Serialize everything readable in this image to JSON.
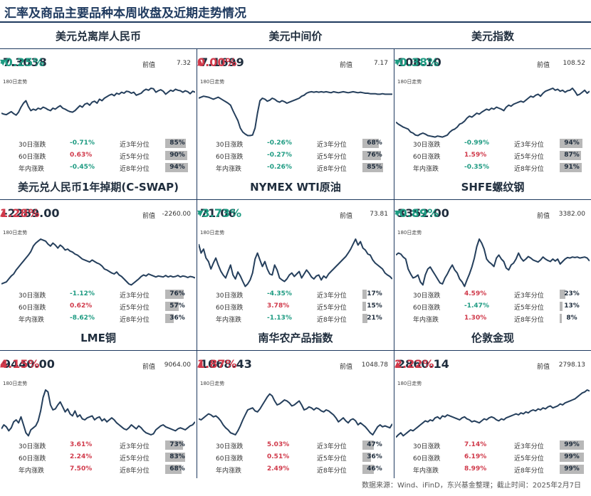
{
  "page": {
    "title": "汇率及商品主要品种本周收盘及近期走势情况",
    "source": "数据来源：Wind、iFinD，东兴基金整理；截止时间：2025年2月7日"
  },
  "labels": {
    "prev": "前值",
    "trend": "180日走势",
    "d30": "30日涨跌",
    "d60": "60日涨跌",
    "ytd": "年内涨跌",
    "p3": "近3年分位",
    "p5": "近5年分位",
    "p8": "近8年分位"
  },
  "colors": {
    "up": "#d0394a",
    "down": "#1e9b82",
    "line": "#253f5c",
    "bar": "#b8b8b8",
    "rule": "#1f3a5f"
  },
  "cards": [
    {
      "name": "美元兑离岸人民币",
      "value": "7.3038",
      "change": "-0.25%",
      "direction": "down",
      "arrow": "▼",
      "prev": "7.32",
      "spark": [
        50,
        48,
        47,
        50,
        53,
        49,
        46,
        52,
        62,
        70,
        75,
        63,
        55,
        58,
        56,
        60,
        58,
        62,
        60,
        57,
        55,
        60,
        58,
        62,
        65,
        60,
        58,
        55,
        53,
        52,
        55,
        60,
        65,
        62,
        68,
        70,
        66,
        72,
        74,
        70,
        78,
        75,
        80,
        83,
        86,
        88,
        85,
        90,
        88,
        92,
        90,
        94,
        93,
        90,
        92,
        86,
        88,
        90,
        95,
        98,
        96,
        100,
        99,
        92,
        95,
        97,
        94,
        88,
        92,
        96,
        94,
        98,
        96,
        95,
        92,
        95,
        93,
        89,
        94,
        92
      ],
      "stats": [
        {
          "val": "-0.71%",
          "dir": "down",
          "pct": "85%",
          "fill": 0.85
        },
        {
          "val": "0.63%",
          "dir": "up",
          "pct": "90%",
          "fill": 0.9
        },
        {
          "val": "-0.45%",
          "dir": "down",
          "pct": "94%",
          "fill": 0.94
        }
      ]
    },
    {
      "name": "美元中间价",
      "value": "7.1699",
      "change": "0.00%",
      "direction": "up",
      "arrow": "▲",
      "prev": "7.17",
      "spark": [
        80,
        82,
        84,
        83,
        82,
        80,
        78,
        80,
        82,
        79,
        76,
        73,
        70,
        66,
        55,
        45,
        35,
        20,
        12,
        8,
        5,
        5,
        6,
        20,
        50,
        75,
        80,
        78,
        74,
        76,
        80,
        78,
        74,
        72,
        75,
        73,
        70,
        72,
        74,
        76,
        78,
        80,
        84,
        86,
        90,
        92,
        93,
        92,
        93,
        92,
        93,
        92,
        93,
        92,
        91,
        93,
        92,
        91,
        92,
        93,
        92,
        91,
        92,
        93,
        92,
        91,
        92,
        91,
        90,
        90,
        89,
        89,
        89,
        88,
        88,
        89,
        88,
        88,
        88,
        88
      ],
      "stats": [
        {
          "val": "-0.26%",
          "dir": "down",
          "pct": "68%",
          "fill": 0.68
        },
        {
          "val": "-0.27%",
          "dir": "down",
          "pct": "76%",
          "fill": 0.76
        },
        {
          "val": "-0.26%",
          "dir": "down",
          "pct": "85%",
          "fill": 0.85
        }
      ]
    },
    {
      "name": "美元指数",
      "value": "108.10",
      "change": "-0.38%",
      "direction": "down",
      "arrow": "▼",
      "prev": "108.52",
      "spark": [
        32,
        28,
        25,
        22,
        20,
        18,
        12,
        10,
        6,
        5,
        8,
        10,
        8,
        5,
        4,
        3,
        2,
        4,
        3,
        2,
        4,
        6,
        12,
        16,
        18,
        22,
        28,
        30,
        34,
        40,
        44,
        42,
        46,
        50,
        48,
        52,
        55,
        58,
        56,
        60,
        58,
        62,
        60,
        58,
        55,
        62,
        66,
        64,
        68,
        70,
        72,
        74,
        72,
        76,
        80,
        84,
        82,
        86,
        88,
        84,
        90,
        94,
        96,
        98,
        100,
        96,
        98,
        94,
        96,
        92,
        95,
        96,
        100,
        94,
        86,
        88,
        92,
        96,
        90,
        94
      ],
      "stats": [
        {
          "val": "-0.99%",
          "dir": "down",
          "pct": "94%",
          "fill": 0.94
        },
        {
          "val": "1.59%",
          "dir": "up",
          "pct": "87%",
          "fill": 0.87
        },
        {
          "val": "-0.35%",
          "dir": "down",
          "pct": "91%",
          "fill": 0.91
        }
      ]
    },
    {
      "name": "美元兑人民币1年掉期(C-SWAP)",
      "value": "-2289.00",
      "change": "1.28%",
      "direction": "up",
      "arrow": "▲",
      "prev": "-2260.00",
      "spark": [
        10,
        12,
        14,
        20,
        26,
        30,
        38,
        44,
        50,
        56,
        62,
        68,
        75,
        86,
        92,
        96,
        100,
        98,
        96,
        90,
        86,
        92,
        88,
        82,
        88,
        84,
        78,
        80,
        76,
        74,
        70,
        68,
        64,
        60,
        58,
        56,
        54,
        58,
        55,
        52,
        50,
        46,
        40,
        38,
        35,
        32,
        30,
        34,
        28,
        25,
        20,
        15,
        10,
        8,
        12,
        16,
        20,
        25,
        28,
        26,
        30,
        28,
        26,
        24,
        26,
        25,
        24,
        27,
        24,
        26,
        24,
        25,
        27,
        24,
        26,
        25,
        23,
        25,
        24,
        22
      ],
      "stats": [
        {
          "val": "-1.12%",
          "dir": "down",
          "pct": "76%",
          "fill": 0.76
        },
        {
          "val": "0.62%",
          "dir": "up",
          "pct": "57%",
          "fill": 0.57
        },
        {
          "val": "-8.62%",
          "dir": "down",
          "pct": "36%",
          "fill": 0.36
        }
      ]
    },
    {
      "name": "NYMEX WTI原油",
      "value": "71.06",
      "change": "-3.73%",
      "direction": "down",
      "arrow": "▼",
      "prev": "73.81",
      "spark": [
        90,
        72,
        80,
        62,
        55,
        40,
        52,
        62,
        48,
        36,
        28,
        22,
        35,
        48,
        28,
        20,
        34,
        26,
        15,
        5,
        10,
        18,
        32,
        60,
        72,
        58,
        45,
        55,
        40,
        30,
        28,
        48,
        38,
        22,
        18,
        15,
        20,
        28,
        32,
        25,
        30,
        35,
        22,
        30,
        38,
        32,
        24,
        20,
        26,
        28,
        18,
        26,
        22,
        30,
        35,
        40,
        45,
        50,
        55,
        60,
        65,
        72,
        80,
        90,
        100,
        88,
        95,
        82,
        78,
        70,
        68,
        58,
        52,
        48,
        44,
        40,
        32,
        28,
        25,
        20
      ],
      "stats": [
        {
          "val": "-4.35%",
          "dir": "down",
          "pct": "17%",
          "fill": 0.17
        },
        {
          "val": "3.78%",
          "dir": "up",
          "pct": "15%",
          "fill": 0.15
        },
        {
          "val": "-1.13%",
          "dir": "down",
          "pct": "21%",
          "fill": 0.21
        }
      ]
    },
    {
      "name": "SHFE螺纹钢",
      "value": "3352.00",
      "change": "-0.89%",
      "direction": "down",
      "arrow": "▼",
      "prev": "3382.00",
      "spark": [
        68,
        72,
        70,
        64,
        60,
        40,
        30,
        22,
        24,
        28,
        14,
        8,
        28,
        40,
        44,
        36,
        28,
        20,
        12,
        10,
        22,
        30,
        40,
        48,
        38,
        32,
        20,
        14,
        5,
        18,
        30,
        44,
        62,
        85,
        100,
        92,
        80,
        60,
        54,
        50,
        45,
        62,
        68,
        60,
        55,
        42,
        38,
        48,
        52,
        60,
        72,
        62,
        56,
        60,
        65,
        62,
        58,
        56,
        54,
        58,
        64,
        60,
        57,
        55,
        60,
        56,
        60,
        50,
        55,
        60,
        63,
        62,
        64,
        63,
        64,
        62,
        63,
        64,
        62,
        56
      ],
      "stats": [
        {
          "val": "4.59%",
          "dir": "up",
          "pct": "23%",
          "fill": 0.23
        },
        {
          "val": "-1.47%",
          "dir": "down",
          "pct": "13%",
          "fill": 0.13
        },
        {
          "val": "1.30%",
          "dir": "up",
          "pct": "8%",
          "fill": 0.08
        }
      ]
    },
    {
      "name": "LME铜",
      "value": "9440.00",
      "change": "4.15%",
      "direction": "up",
      "arrow": "▲",
      "prev": "9064.00",
      "spark": [
        22,
        30,
        26,
        18,
        24,
        36,
        40,
        34,
        46,
        30,
        14,
        8,
        20,
        24,
        28,
        38,
        58,
        85,
        100,
        96,
        70,
        60,
        62,
        70,
        76,
        66,
        56,
        62,
        52,
        48,
        58,
        46,
        50,
        42,
        40,
        44,
        46,
        48,
        40,
        44,
        46,
        38,
        42,
        36,
        40,
        44,
        40,
        34,
        30,
        26,
        22,
        20,
        24,
        30,
        26,
        22,
        28,
        24,
        18,
        14,
        12,
        10,
        12,
        20,
        24,
        28,
        30,
        26,
        24,
        22,
        20,
        18,
        22,
        24,
        22,
        20,
        24,
        28,
        30,
        36
      ],
      "stats": [
        {
          "val": "3.61%",
          "dir": "up",
          "pct": "73%",
          "fill": 0.73
        },
        {
          "val": "2.24%",
          "dir": "up",
          "pct": "83%",
          "fill": 0.83
        },
        {
          "val": "7.50%",
          "dir": "up",
          "pct": "68%",
          "fill": 0.68
        }
      ]
    },
    {
      "name": "南华农产品指数",
      "value": "1068.43",
      "change": "1.87%",
      "direction": "up",
      "arrow": "▲",
      "prev": "1048.78",
      "spark": [
        42,
        40,
        44,
        48,
        52,
        50,
        46,
        48,
        44,
        38,
        30,
        24,
        20,
        14,
        12,
        10,
        18,
        28,
        40,
        50,
        60,
        62,
        64,
        58,
        56,
        62,
        70,
        78,
        86,
        92,
        88,
        78,
        70,
        72,
        76,
        80,
        78,
        74,
        68,
        70,
        74,
        78,
        70,
        60,
        62,
        66,
        64,
        60,
        64,
        62,
        58,
        56,
        60,
        58,
        54,
        50,
        44,
        36,
        40,
        44,
        38,
        34,
        40,
        42,
        38,
        30,
        34,
        30,
        26,
        20,
        14,
        10,
        18,
        26,
        30,
        26,
        28,
        26,
        24,
        32
      ],
      "stats": [
        {
          "val": "5.03%",
          "dir": "up",
          "pct": "47%",
          "fill": 0.47
        },
        {
          "val": "0.51%",
          "dir": "up",
          "pct": "36%",
          "fill": 0.36
        },
        {
          "val": "2.49%",
          "dir": "up",
          "pct": "46%",
          "fill": 0.46
        }
      ]
    },
    {
      "name": "伦敦金现",
      "value": "2860.14",
      "change": "2.22%",
      "direction": "up",
      "arrow": "▲",
      "prev": "2798.13",
      "spark": [
        5,
        10,
        14,
        8,
        12,
        16,
        20,
        18,
        22,
        26,
        30,
        34,
        38,
        36,
        40,
        38,
        44,
        46,
        42,
        48,
        46,
        50,
        48,
        46,
        44,
        42,
        40,
        44,
        46,
        42,
        40,
        36,
        38,
        36,
        34,
        38,
        42,
        40,
        44,
        46,
        44,
        40,
        38,
        42,
        40,
        44,
        46,
        48,
        50,
        52,
        50,
        54,
        52,
        56,
        54,
        58,
        60,
        58,
        62,
        60,
        64,
        62,
        66,
        68,
        64,
        66,
        68,
        72,
        70,
        74,
        76,
        78,
        80,
        82,
        86,
        90,
        94,
        96,
        100,
        98
      ],
      "stats": [
        {
          "val": "7.14%",
          "dir": "up",
          "pct": "99%",
          "fill": 0.99
        },
        {
          "val": "6.19%",
          "dir": "up",
          "pct": "99%",
          "fill": 0.99
        },
        {
          "val": "8.99%",
          "dir": "up",
          "pct": "99%",
          "fill": 0.99
        }
      ]
    }
  ]
}
